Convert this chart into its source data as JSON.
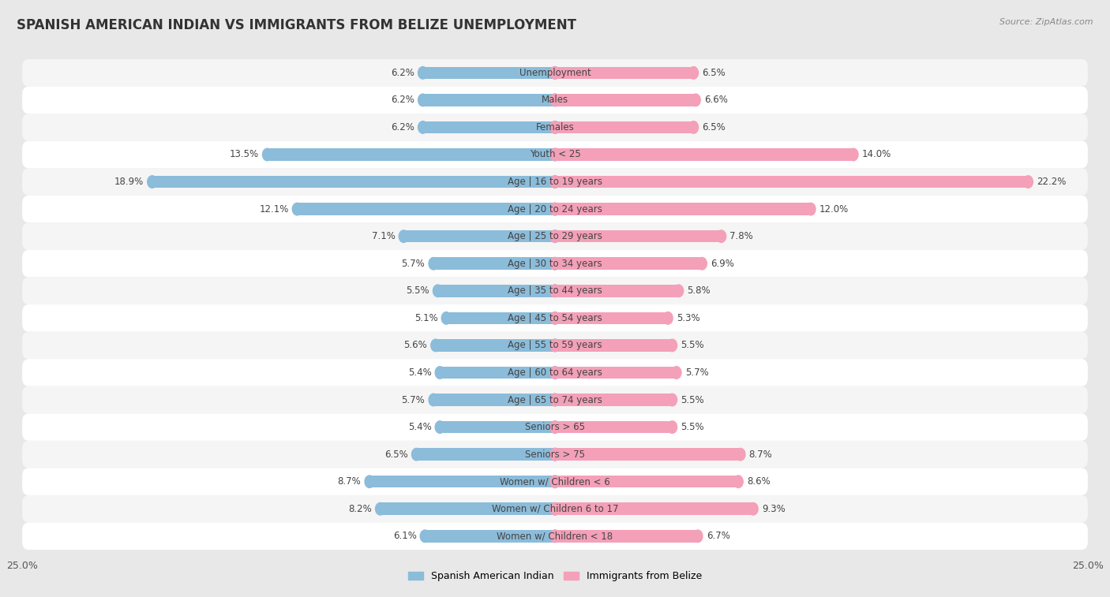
{
  "title": "SPANISH AMERICAN INDIAN VS IMMIGRANTS FROM BELIZE UNEMPLOYMENT",
  "source": "Source: ZipAtlas.com",
  "categories": [
    "Unemployment",
    "Males",
    "Females",
    "Youth < 25",
    "Age | 16 to 19 years",
    "Age | 20 to 24 years",
    "Age | 25 to 29 years",
    "Age | 30 to 34 years",
    "Age | 35 to 44 years",
    "Age | 45 to 54 years",
    "Age | 55 to 59 years",
    "Age | 60 to 64 years",
    "Age | 65 to 74 years",
    "Seniors > 65",
    "Seniors > 75",
    "Women w/ Children < 6",
    "Women w/ Children 6 to 17",
    "Women w/ Children < 18"
  ],
  "left_values": [
    6.2,
    6.2,
    6.2,
    13.5,
    18.9,
    12.1,
    7.1,
    5.7,
    5.5,
    5.1,
    5.6,
    5.4,
    5.7,
    5.4,
    6.5,
    8.7,
    8.2,
    6.1
  ],
  "right_values": [
    6.5,
    6.6,
    6.5,
    14.0,
    22.2,
    12.0,
    7.8,
    6.9,
    5.8,
    5.3,
    5.5,
    5.7,
    5.5,
    5.5,
    8.7,
    8.6,
    9.3,
    6.7
  ],
  "left_color": "#8bbcda",
  "right_color": "#f4a0b8",
  "left_label": "Spanish American Indian",
  "right_label": "Immigrants from Belize",
  "xlim": 25.0,
  "bg_color": "#e8e8e8",
  "row_color_odd": "#f5f5f5",
  "row_color_even": "#ffffff",
  "title_fontsize": 12,
  "source_fontsize": 8,
  "label_fontsize": 8.5,
  "value_fontsize": 8.5,
  "bar_height": 0.45
}
